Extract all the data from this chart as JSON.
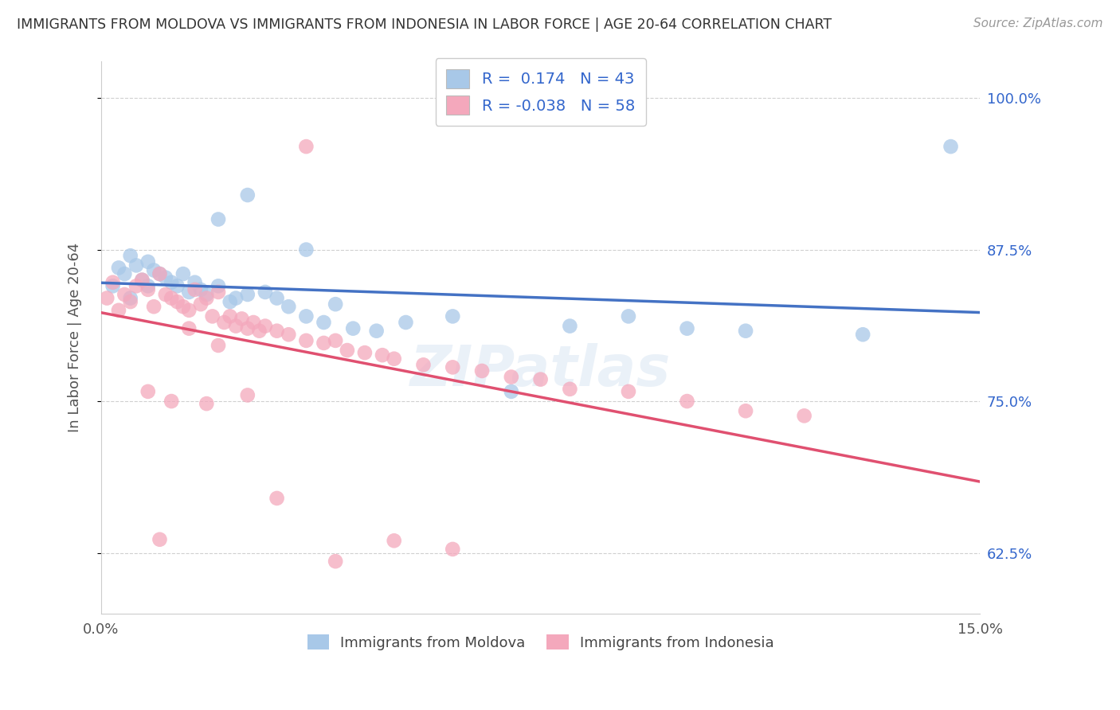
{
  "title": "IMMIGRANTS FROM MOLDOVA VS IMMIGRANTS FROM INDONESIA IN LABOR FORCE | AGE 20-64 CORRELATION CHART",
  "source": "Source: ZipAtlas.com",
  "ylabel": "In Labor Force | Age 20-64",
  "xlim": [
    0.0,
    0.15
  ],
  "ylim": [
    0.575,
    1.03
  ],
  "xticks": [
    0.0,
    0.05,
    0.1,
    0.15
  ],
  "xtick_labels": [
    "0.0%",
    "",
    "",
    "15.0%"
  ],
  "ytick_labels": [
    "62.5%",
    "75.0%",
    "87.5%",
    "100.0%"
  ],
  "yticks": [
    0.625,
    0.75,
    0.875,
    1.0
  ],
  "moldova_color": "#a8c8e8",
  "indonesia_color": "#f4a8bc",
  "moldova_line_color": "#4472c4",
  "indonesia_line_color": "#e05070",
  "legend_color": "#3366cc",
  "moldova_R": 0.174,
  "moldova_N": 43,
  "indonesia_R": -0.038,
  "indonesia_N": 58,
  "moldova_scatter_x": [
    0.002,
    0.003,
    0.004,
    0.005,
    0.005,
    0.006,
    0.007,
    0.008,
    0.008,
    0.009,
    0.01,
    0.011,
    0.012,
    0.013,
    0.014,
    0.015,
    0.016,
    0.017,
    0.018,
    0.02,
    0.022,
    0.023,
    0.025,
    0.028,
    0.03,
    0.032,
    0.035,
    0.038,
    0.04,
    0.043,
    0.047,
    0.052,
    0.06,
    0.07,
    0.08,
    0.09,
    0.1,
    0.11,
    0.13,
    0.145,
    0.02,
    0.025,
    0.035
  ],
  "moldova_scatter_y": [
    0.845,
    0.86,
    0.855,
    0.87,
    0.835,
    0.862,
    0.85,
    0.845,
    0.865,
    0.858,
    0.855,
    0.852,
    0.848,
    0.845,
    0.855,
    0.84,
    0.848,
    0.842,
    0.838,
    0.845,
    0.832,
    0.835,
    0.838,
    0.84,
    0.835,
    0.828,
    0.82,
    0.815,
    0.83,
    0.81,
    0.808,
    0.815,
    0.82,
    0.758,
    0.812,
    0.82,
    0.81,
    0.808,
    0.805,
    0.96,
    0.9,
    0.92,
    0.875
  ],
  "indonesia_scatter_x": [
    0.001,
    0.002,
    0.003,
    0.004,
    0.005,
    0.006,
    0.007,
    0.008,
    0.009,
    0.01,
    0.011,
    0.012,
    0.013,
    0.014,
    0.015,
    0.016,
    0.017,
    0.018,
    0.019,
    0.02,
    0.021,
    0.022,
    0.023,
    0.024,
    0.025,
    0.026,
    0.027,
    0.028,
    0.03,
    0.032,
    0.035,
    0.038,
    0.04,
    0.042,
    0.045,
    0.048,
    0.05,
    0.055,
    0.06,
    0.065,
    0.07,
    0.075,
    0.08,
    0.09,
    0.1,
    0.11,
    0.12,
    0.008,
    0.012,
    0.018,
    0.025,
    0.03,
    0.015,
    0.02,
    0.01,
    0.035,
    0.04,
    0.05,
    0.06
  ],
  "indonesia_scatter_y": [
    0.835,
    0.848,
    0.825,
    0.838,
    0.832,
    0.845,
    0.85,
    0.842,
    0.828,
    0.855,
    0.838,
    0.835,
    0.832,
    0.828,
    0.825,
    0.842,
    0.83,
    0.835,
    0.82,
    0.84,
    0.815,
    0.82,
    0.812,
    0.818,
    0.81,
    0.815,
    0.808,
    0.812,
    0.808,
    0.805,
    0.8,
    0.798,
    0.8,
    0.792,
    0.79,
    0.788,
    0.785,
    0.78,
    0.778,
    0.775,
    0.77,
    0.768,
    0.76,
    0.758,
    0.75,
    0.742,
    0.738,
    0.758,
    0.75,
    0.748,
    0.755,
    0.67,
    0.81,
    0.796,
    0.636,
    0.96,
    0.618,
    0.635,
    0.628
  ],
  "watermark": "ZIPatlas",
  "background_color": "#ffffff",
  "grid_color": "#d0d0d0"
}
